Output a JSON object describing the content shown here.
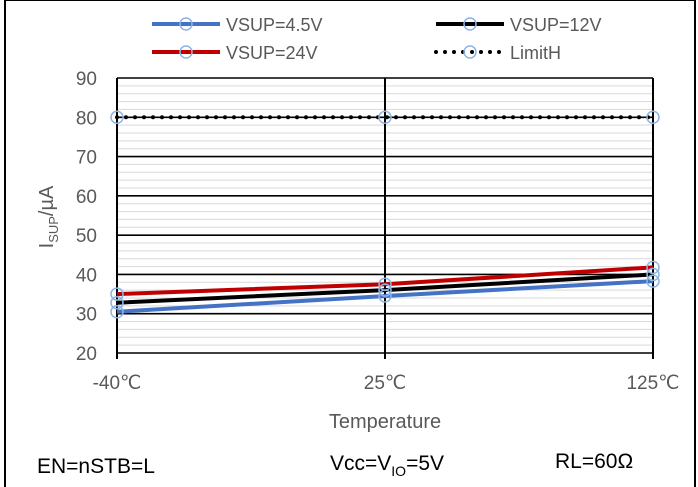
{
  "chart_data": {
    "type": "line",
    "categories": [
      "-40℃",
      "25℃",
      "125℃"
    ],
    "series": [
      {
        "name": "VSUP=4.5V",
        "values": [
          30.5,
          34.5,
          38.3
        ],
        "color": "#4472c4",
        "style": "solid"
      },
      {
        "name": "VSUP=12V",
        "values": [
          32.8,
          36.0,
          40.0
        ],
        "color": "#000000",
        "style": "solid"
      },
      {
        "name": "VSUP=24V",
        "values": [
          35.0,
          37.5,
          41.8
        ],
        "color": "#c00000",
        "style": "solid"
      },
      {
        "name": "LimitH",
        "values": [
          80,
          80,
          80
        ],
        "color": "#000000",
        "style": "dotted"
      }
    ],
    "marker": {
      "shape": "circle",
      "stroke": "#8eb4e3"
    },
    "xlabel": "Temperature",
    "ylabel": {
      "main": "I",
      "sub": "SUP",
      "unit": "/µA"
    },
    "ylim": [
      20,
      90
    ],
    "yticks": [
      20,
      30,
      40,
      50,
      60,
      70,
      80,
      90
    ],
    "grid": true,
    "legend_position": "top"
  },
  "notes": {
    "left": "EN=nSTB=L",
    "middle": {
      "a": "Vcc=V",
      "sub": "IO",
      "b": "=5V"
    },
    "right": "RL=60Ω"
  }
}
